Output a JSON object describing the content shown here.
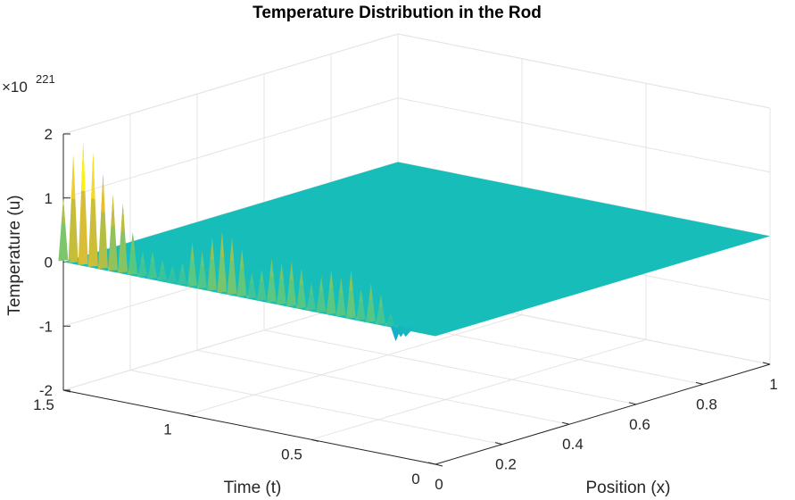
{
  "chart_data": {
    "type": "surface",
    "title": "Temperature Distribution in the Rod",
    "xlabel": "Position (x)",
    "ylabel": "Time (t)",
    "zlabel": "Temperature (u)",
    "z_exponent_base": "×10",
    "z_exponent_power": "221",
    "xlim": [
      0,
      1
    ],
    "ylim": [
      0,
      1.5
    ],
    "zlim": [
      -2,
      2
    ],
    "x_ticks": [
      0,
      0.2,
      0.4,
      0.6,
      0.8,
      1
    ],
    "x_tick_labels": [
      "0",
      "0.2",
      "0.4",
      "0.6",
      "0.8",
      "1"
    ],
    "y_ticks": [
      0,
      0.5,
      1,
      1.5
    ],
    "y_tick_labels": [
      "0",
      "0.5",
      "1",
      "1.5"
    ],
    "z_ticks": [
      -2,
      -1,
      0,
      1,
      2
    ],
    "z_tick_labels": [
      "-2",
      "-1",
      "0",
      "1",
      "2"
    ],
    "grid": true,
    "colormap": "parula",
    "surface": {
      "description_value": "numerically unstable solution: flat at 0 except oscillating spikes along x = 0 for late times",
      "flat_value": 0,
      "spikes_along_x0": [
        {
          "t": 0.18,
          "u": 0.22
        },
        {
          "t": 0.22,
          "u": 0.48
        },
        {
          "t": 0.26,
          "u": 0.62
        },
        {
          "t": 0.3,
          "u": 0.5
        },
        {
          "t": 0.34,
          "u": 0.76
        },
        {
          "t": 0.38,
          "u": 0.62
        },
        {
          "t": 0.42,
          "u": 0.7
        },
        {
          "t": 0.46,
          "u": 0.58
        },
        {
          "t": 0.5,
          "u": 0.44
        },
        {
          "t": 0.54,
          "u": 0.64
        },
        {
          "t": 0.58,
          "u": 0.72
        },
        {
          "t": 0.62,
          "u": 0.66
        },
        {
          "t": 0.66,
          "u": 0.7
        },
        {
          "t": 0.7,
          "u": 0.5
        },
        {
          "t": 0.74,
          "u": 0.42
        },
        {
          "t": 0.78,
          "u": 0.76
        },
        {
          "t": 0.82,
          "u": 0.9
        },
        {
          "t": 0.86,
          "u": 0.96
        },
        {
          "t": 0.9,
          "u": 0.84
        },
        {
          "t": 0.94,
          "u": 0.6
        },
        {
          "t": 0.98,
          "u": 0.7
        },
        {
          "t": 1.02,
          "u": 0.36
        },
        {
          "t": 1.06,
          "u": 0.28
        },
        {
          "t": 1.1,
          "u": 0.34
        },
        {
          "t": 1.14,
          "u": 0.44
        },
        {
          "t": 1.18,
          "u": 0.4
        },
        {
          "t": 1.22,
          "u": 0.68
        },
        {
          "t": 1.26,
          "u": 1.1
        },
        {
          "t": 1.3,
          "u": 1.2
        },
        {
          "t": 1.34,
          "u": 1.5
        },
        {
          "t": 1.38,
          "u": 1.8
        },
        {
          "t": 1.42,
          "u": 1.95
        },
        {
          "t": 1.46,
          "u": 1.7
        },
        {
          "t": 1.5,
          "u": 1.0
        }
      ],
      "negative_spikes_along_x0": [
        {
          "t": 0.14,
          "u": -0.12
        },
        {
          "t": 0.16,
          "u": -0.2
        },
        {
          "t": 0.12,
          "u": -0.1
        }
      ]
    }
  }
}
